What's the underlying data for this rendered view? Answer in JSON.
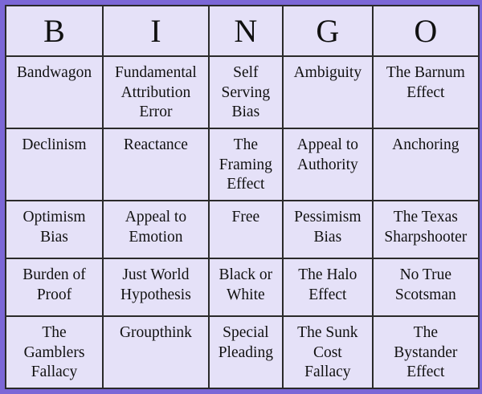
{
  "header": [
    "B",
    "I",
    "N",
    "G",
    "O"
  ],
  "rows": [
    [
      "Bandwagon",
      "Fundamental Attribution Error",
      "Self Serving Bias",
      "Ambiguity",
      "The Barnum Effect"
    ],
    [
      "Declinism",
      "Reactance",
      "The Framing Effect",
      "Appeal to Authority",
      "Anchoring"
    ],
    [
      "Optimism Bias",
      "Appeal to Emotion",
      "Free",
      "Pessimism Bias",
      "The Texas Sharpshooter"
    ],
    [
      "Burden of Proof",
      "Just World Hypothesis",
      "Black or White",
      "The Halo Effect",
      "No True Scotsman"
    ],
    [
      "The Gamblers Fallacy",
      "Groupthink",
      "Special Pleading",
      "The Sunk Cost Fallacy",
      "The Bystander Effect"
    ]
  ],
  "colors": {
    "border": "#7b67d6",
    "cell": "#e5e1f8",
    "grid": "#2a2a2a"
  }
}
